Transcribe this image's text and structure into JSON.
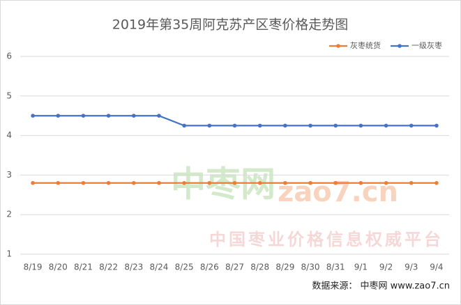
{
  "chart_data": {
    "type": "line",
    "title": "2019年第35周阿克苏产区枣价格走势图",
    "categories": [
      "8/19",
      "8/20",
      "8/21",
      "8/22",
      "8/23",
      "8/24",
      "8/25",
      "8/26",
      "8/27",
      "8/28",
      "8/29",
      "8/30",
      "8/31",
      "9/1",
      "9/2",
      "9/3",
      "9/4"
    ],
    "series": [
      {
        "name": "灰枣统货",
        "color": "#ed7d31",
        "values": [
          2.8,
          2.8,
          2.8,
          2.8,
          2.8,
          2.8,
          2.8,
          2.8,
          2.8,
          2.8,
          2.8,
          2.8,
          2.8,
          2.8,
          2.8,
          2.8,
          2.8
        ]
      },
      {
        "name": "一级灰枣",
        "color": "#4472c4",
        "values": [
          4.5,
          4.5,
          4.5,
          4.5,
          4.5,
          4.5,
          4.25,
          4.25,
          4.25,
          4.25,
          4.25,
          4.25,
          4.25,
          4.25,
          4.25,
          4.25,
          4.25
        ]
      }
    ],
    "ylim": [
      1,
      6
    ],
    "yticks": [
      1,
      2,
      3,
      4,
      5,
      6
    ],
    "grid": true,
    "legend": "top-right",
    "watermark": [
      "中枣网",
      "zao7.cn",
      "中国枣业价格信息权威平台"
    ],
    "source": "数据来源：  中枣网 www.zao7.cn"
  }
}
